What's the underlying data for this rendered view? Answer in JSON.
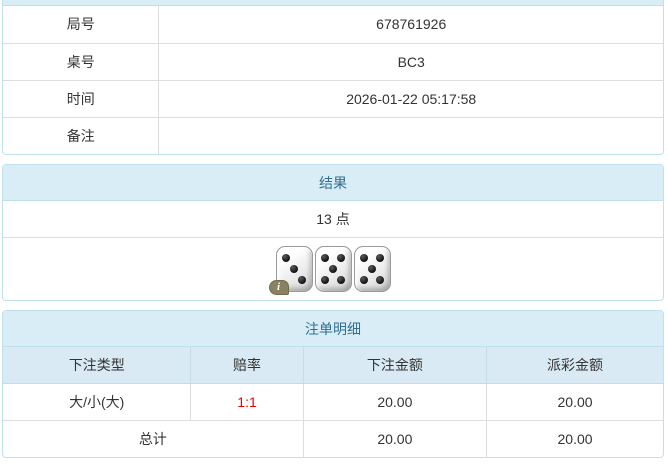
{
  "colors": {
    "heading_bg": "#d9edf7",
    "heading_text": "#31708f",
    "panel_border": "#bfe1ee",
    "row_border": "#dddddd",
    "header_row_bg": "#d9eaf4",
    "header_row_border": "#c6dbe7",
    "odds_red": "#e60000",
    "badge_bg": "#8a8164",
    "text": "#333333"
  },
  "info_panel": {
    "rows": [
      {
        "label": "局号",
        "value": "678761926"
      },
      {
        "label": "桌号",
        "value": "BC3"
      },
      {
        "label": "时间",
        "value": "2026-01-22 05:17:58"
      },
      {
        "label": "备注",
        "value": ""
      }
    ]
  },
  "result_panel": {
    "title": "结果",
    "points": "13 点",
    "dice": [
      3,
      5,
      5
    ],
    "info_badge": "i"
  },
  "bets_panel": {
    "title": "注单明细",
    "columns": [
      "下注类型",
      "赔率",
      "下注金额",
      "派彩金额"
    ],
    "rows": [
      {
        "type": "大/小(大)",
        "odds": "1:1",
        "bet": "20.00",
        "payout": "20.00"
      }
    ],
    "total": {
      "label": "总计",
      "bet": "20.00",
      "payout": "20.00"
    }
  }
}
